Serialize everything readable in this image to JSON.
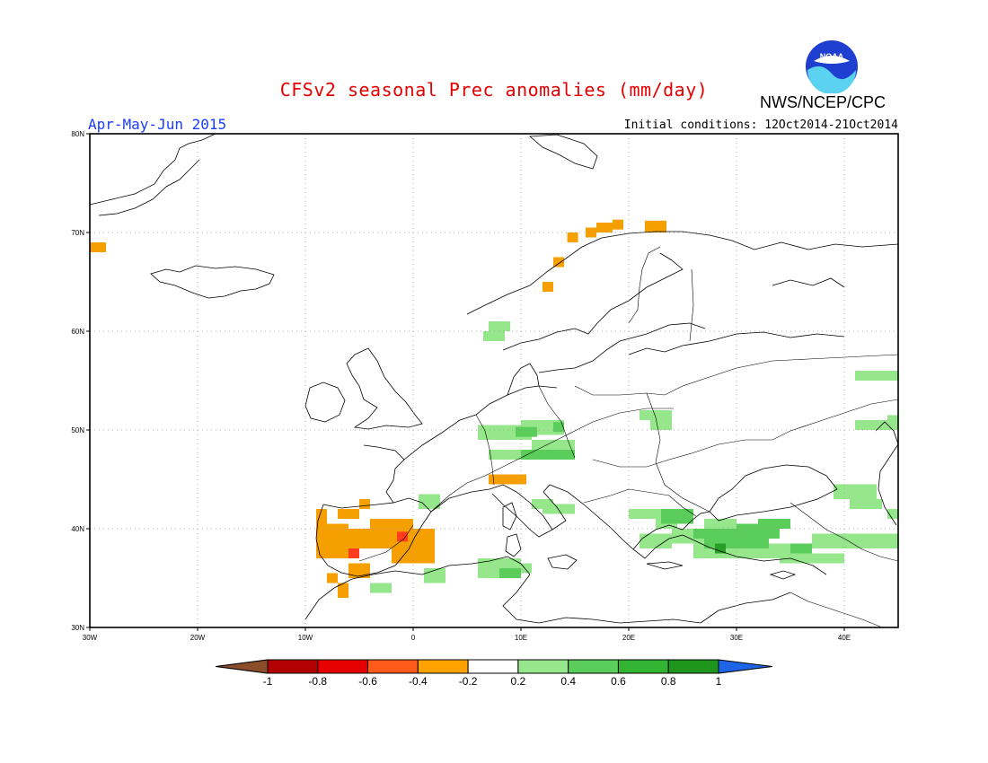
{
  "header": {
    "title": "CFSv2 seasonal Prec anomalies (mm/day)",
    "period": "Apr-May-Jun 2015",
    "initial_conditions": "Initial conditions: 12Oct2014-21Oct2014",
    "agency": "NWS/NCEP/CPC",
    "logo_text": "NOAA"
  },
  "map": {
    "lon_range": [
      -30,
      45
    ],
    "lat_range": [
      30,
      80
    ],
    "lon_ticks": [
      "30W",
      "20W",
      "10W",
      "0",
      "10E",
      "20E",
      "30E",
      "40E"
    ],
    "lat_ticks": [
      "30N",
      "40N",
      "50N",
      "60N",
      "70N",
      "80N"
    ],
    "grid": true
  },
  "colorbar": {
    "labels": [
      "-1",
      "-0.8",
      "-0.6",
      "-0.4",
      "-0.2",
      "0.2",
      "0.4",
      "0.6",
      "0.8",
      "1"
    ],
    "colors": [
      "#8a4f2a",
      "#b30000",
      "#e60000",
      "#ff5a1a",
      "#ffa200",
      "#ffffff",
      "#96e68c",
      "#5acd5a",
      "#32b432",
      "#1e961e",
      "#1e64e6"
    ]
  },
  "colors": {
    "neg_04": "#f5a000",
    "neg_06": "#ff3c1e",
    "pos_02": "#96e68c",
    "pos_04": "#5acd5a",
    "pos_06": "#28a028"
  },
  "anomaly_cells": {
    "neg_04": [
      [
        -30,
        68,
        1.5,
        1
      ],
      [
        14.3,
        69,
        1,
        1
      ],
      [
        16,
        69.5,
        1,
        1
      ],
      [
        17,
        70,
        1.5,
        1
      ],
      [
        18.5,
        70.3,
        1,
        1
      ],
      [
        21.5,
        70,
        2,
        1.2
      ],
      [
        13,
        66.5,
        1,
        1
      ],
      [
        12,
        64,
        1,
        1
      ],
      [
        7,
        44.5,
        3.5,
        1
      ],
      [
        -9,
        40.5,
        1,
        1.5
      ],
      [
        -9,
        37,
        3,
        3.5
      ],
      [
        -6,
        38,
        8,
        2
      ],
      [
        -4,
        40,
        4,
        1
      ],
      [
        -2,
        36.5,
        4,
        1.5
      ],
      [
        -7,
        41,
        2,
        1
      ],
      [
        -5,
        42,
        1,
        1
      ],
      [
        -6,
        35,
        2,
        1.5
      ],
      [
        -8,
        34.5,
        1,
        1
      ],
      [
        -7,
        33,
        1,
        1.5
      ]
    ],
    "neg_06": [
      [
        -1.5,
        38.7,
        1,
        1
      ],
      [
        -6,
        37,
        1,
        1
      ]
    ],
    "pos_02": [
      [
        7,
        60,
        2,
        1
      ],
      [
        6.5,
        59,
        2,
        1
      ],
      [
        21,
        51,
        3,
        1
      ],
      [
        22,
        50,
        2,
        1
      ],
      [
        6,
        49,
        5,
        1.5
      ],
      [
        10,
        49.5,
        4,
        1.5
      ],
      [
        7,
        47,
        6,
        1
      ],
      [
        11,
        48,
        4,
        1
      ],
      [
        0.5,
        42,
        2,
        1.5
      ],
      [
        11,
        42,
        2,
        1
      ],
      [
        12,
        41.5,
        3,
        1
      ],
      [
        20,
        41,
        5,
        1
      ],
      [
        22.5,
        40,
        2,
        1.5
      ],
      [
        6,
        35,
        4,
        2
      ],
      [
        9,
        35.5,
        2,
        1
      ],
      [
        1,
        34.5,
        2,
        1.5
      ],
      [
        -4,
        33.5,
        2,
        1
      ],
      [
        21,
        38,
        3,
        1.5
      ],
      [
        24,
        38.5,
        6,
        1.5
      ],
      [
        26,
        37,
        10,
        1.5
      ],
      [
        34,
        36.5,
        6,
        1
      ],
      [
        37,
        38,
        8,
        1.5
      ],
      [
        39,
        43,
        4,
        1.5
      ],
      [
        40.5,
        42,
        3,
        1
      ],
      [
        44,
        41,
        1,
        1
      ],
      [
        41,
        50,
        3,
        1
      ],
      [
        44,
        50,
        1,
        1.5
      ],
      [
        41,
        55,
        4,
        1
      ],
      [
        27,
        40,
        3,
        1
      ]
    ],
    "pos_04": [
      [
        9.5,
        49.3,
        2,
        1
      ],
      [
        13,
        49.8,
        1,
        1
      ],
      [
        10,
        47,
        5,
        1
      ],
      [
        23,
        40.5,
        3,
        1.5
      ],
      [
        27,
        38,
        6,
        2
      ],
      [
        30,
        39,
        4,
        1.5
      ],
      [
        32,
        40,
        3,
        1
      ],
      [
        35,
        37.5,
        2,
        1
      ],
      [
        8,
        35,
        2,
        1
      ],
      [
        26,
        39,
        2,
        1
      ]
    ],
    "pos_06": [
      [
        28,
        37.5,
        1,
        1
      ]
    ]
  }
}
